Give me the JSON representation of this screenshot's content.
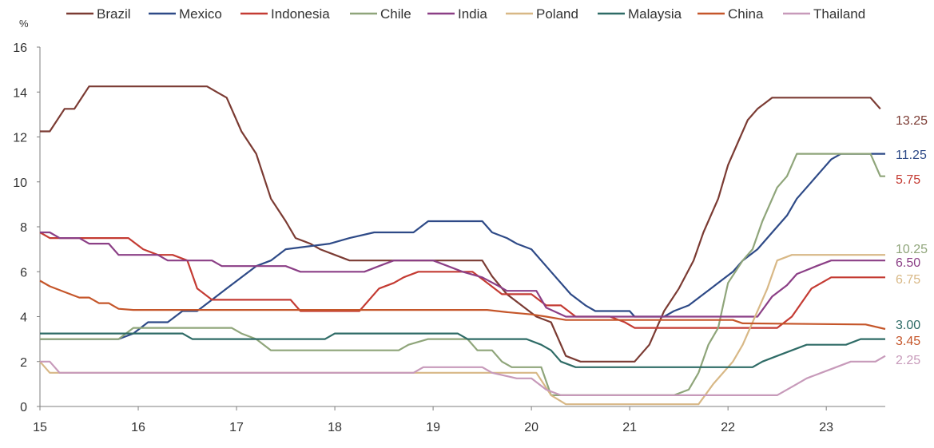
{
  "chart_data": {
    "type": "line",
    "ylabel": "%",
    "ylim": [
      0,
      16
    ],
    "xlim": [
      15,
      23.6
    ],
    "x_ticks": [
      "15",
      "16",
      "17",
      "18",
      "19",
      "20",
      "21",
      "22",
      "23"
    ],
    "y_ticks": [
      "0",
      "2",
      "4",
      "6",
      "8",
      "10",
      "12",
      "14",
      "16"
    ],
    "grid": false,
    "legend_position": "top",
    "series": [
      {
        "name": "Brazil",
        "color": "#7b3b33",
        "end_label": "13.25",
        "points": [
          [
            15.0,
            12.25
          ],
          [
            15.1,
            12.25
          ],
          [
            15.25,
            13.25
          ],
          [
            15.35,
            13.25
          ],
          [
            15.5,
            14.25
          ],
          [
            16.7,
            14.25
          ],
          [
            16.8,
            14.0
          ],
          [
            16.9,
            13.75
          ],
          [
            17.05,
            12.25
          ],
          [
            17.2,
            11.25
          ],
          [
            17.35,
            9.25
          ],
          [
            17.5,
            8.25
          ],
          [
            17.6,
            7.5
          ],
          [
            17.75,
            7.25
          ],
          [
            17.85,
            7.0
          ],
          [
            18.0,
            6.75
          ],
          [
            18.15,
            6.5
          ],
          [
            19.5,
            6.5
          ],
          [
            19.6,
            5.8
          ],
          [
            19.75,
            5.0
          ],
          [
            19.9,
            4.5
          ],
          [
            20.05,
            4.0
          ],
          [
            20.2,
            3.75
          ],
          [
            20.35,
            2.25
          ],
          [
            20.5,
            2.0
          ],
          [
            21.05,
            2.0
          ],
          [
            21.2,
            2.75
          ],
          [
            21.35,
            4.25
          ],
          [
            21.5,
            5.25
          ],
          [
            21.65,
            6.5
          ],
          [
            21.75,
            7.75
          ],
          [
            21.9,
            9.25
          ],
          [
            22.0,
            10.75
          ],
          [
            22.1,
            11.75
          ],
          [
            22.2,
            12.75
          ],
          [
            22.3,
            13.25
          ],
          [
            22.45,
            13.75
          ],
          [
            23.45,
            13.75
          ],
          [
            23.55,
            13.25
          ]
        ]
      },
      {
        "name": "Mexico",
        "color": "#2e4a87",
        "end_label": "11.25",
        "points": [
          [
            15.0,
            3.0
          ],
          [
            15.8,
            3.0
          ],
          [
            15.95,
            3.25
          ],
          [
            16.1,
            3.75
          ],
          [
            16.3,
            3.75
          ],
          [
            16.45,
            4.25
          ],
          [
            16.6,
            4.25
          ],
          [
            16.75,
            4.75
          ],
          [
            16.9,
            5.25
          ],
          [
            17.05,
            5.75
          ],
          [
            17.2,
            6.25
          ],
          [
            17.35,
            6.5
          ],
          [
            17.5,
            7.0
          ],
          [
            17.95,
            7.25
          ],
          [
            18.15,
            7.5
          ],
          [
            18.4,
            7.75
          ],
          [
            18.8,
            7.75
          ],
          [
            18.95,
            8.25
          ],
          [
            19.5,
            8.25
          ],
          [
            19.6,
            7.75
          ],
          [
            19.75,
            7.5
          ],
          [
            19.85,
            7.25
          ],
          [
            20.0,
            7.0
          ],
          [
            20.2,
            6.0
          ],
          [
            20.4,
            5.0
          ],
          [
            20.55,
            4.5
          ],
          [
            20.65,
            4.25
          ],
          [
            21.0,
            4.25
          ],
          [
            21.05,
            4.0
          ],
          [
            21.35,
            4.0
          ],
          [
            21.45,
            4.25
          ],
          [
            21.6,
            4.5
          ],
          [
            21.75,
            5.0
          ],
          [
            21.9,
            5.5
          ],
          [
            22.05,
            6.0
          ],
          [
            22.15,
            6.5
          ],
          [
            22.3,
            7.0
          ],
          [
            22.45,
            7.75
          ],
          [
            22.6,
            8.5
          ],
          [
            22.7,
            9.25
          ],
          [
            22.85,
            10.0
          ],
          [
            22.95,
            10.5
          ],
          [
            23.05,
            11.0
          ],
          [
            23.15,
            11.25
          ],
          [
            23.6,
            11.25
          ]
        ]
      },
      {
        "name": "Indonesia",
        "color": "#c43b33",
        "end_label": "5.75",
        "points": [
          [
            15.0,
            7.75
          ],
          [
            15.1,
            7.5
          ],
          [
            15.9,
            7.5
          ],
          [
            16.05,
            7.0
          ],
          [
            16.2,
            6.75
          ],
          [
            16.35,
            6.75
          ],
          [
            16.5,
            6.5
          ],
          [
            16.6,
            5.25
          ],
          [
            16.75,
            4.75
          ],
          [
            17.55,
            4.75
          ],
          [
            17.65,
            4.25
          ],
          [
            18.25,
            4.25
          ],
          [
            18.45,
            5.25
          ],
          [
            18.6,
            5.5
          ],
          [
            18.7,
            5.75
          ],
          [
            18.85,
            6.0
          ],
          [
            19.4,
            6.0
          ],
          [
            19.55,
            5.5
          ],
          [
            19.7,
            5.0
          ],
          [
            20.0,
            5.0
          ],
          [
            20.15,
            4.5
          ],
          [
            20.3,
            4.5
          ],
          [
            20.45,
            4.0
          ],
          [
            20.8,
            4.0
          ],
          [
            20.95,
            3.75
          ],
          [
            21.05,
            3.5
          ],
          [
            22.5,
            3.5
          ],
          [
            22.65,
            4.0
          ],
          [
            22.85,
            5.25
          ],
          [
            22.95,
            5.5
          ],
          [
            23.05,
            5.75
          ],
          [
            23.6,
            5.75
          ]
        ]
      },
      {
        "name": "Chile",
        "color": "#8fa57a",
        "end_label": "10.25",
        "points": [
          [
            15.0,
            3.0
          ],
          [
            15.8,
            3.0
          ],
          [
            15.95,
            3.5
          ],
          [
            16.95,
            3.5
          ],
          [
            17.05,
            3.25
          ],
          [
            17.2,
            3.0
          ],
          [
            17.35,
            2.5
          ],
          [
            18.65,
            2.5
          ],
          [
            18.75,
            2.75
          ],
          [
            18.95,
            3.0
          ],
          [
            19.35,
            3.0
          ],
          [
            19.45,
            2.5
          ],
          [
            19.6,
            2.5
          ],
          [
            19.7,
            2.0
          ],
          [
            19.8,
            1.75
          ],
          [
            20.1,
            1.75
          ],
          [
            20.2,
            0.5
          ],
          [
            21.45,
            0.5
          ],
          [
            21.6,
            0.75
          ],
          [
            21.7,
            1.5
          ],
          [
            21.8,
            2.75
          ],
          [
            21.9,
            3.5
          ],
          [
            21.95,
            4.5
          ],
          [
            22.0,
            5.5
          ],
          [
            22.15,
            6.5
          ],
          [
            22.25,
            7.0
          ],
          [
            22.35,
            8.25
          ],
          [
            22.5,
            9.75
          ],
          [
            22.6,
            10.25
          ],
          [
            22.7,
            11.25
          ],
          [
            23.45,
            11.25
          ],
          [
            23.55,
            10.25
          ],
          [
            23.6,
            10.25
          ]
        ]
      },
      {
        "name": "India",
        "color": "#8b3f86",
        "end_label": "6.50",
        "points": [
          [
            15.0,
            7.75
          ],
          [
            15.1,
            7.75
          ],
          [
            15.2,
            7.5
          ],
          [
            15.4,
            7.5
          ],
          [
            15.5,
            7.25
          ],
          [
            15.7,
            7.25
          ],
          [
            15.8,
            6.75
          ],
          [
            16.2,
            6.75
          ],
          [
            16.3,
            6.5
          ],
          [
            16.75,
            6.5
          ],
          [
            16.85,
            6.25
          ],
          [
            17.5,
            6.25
          ],
          [
            17.65,
            6.0
          ],
          [
            18.3,
            6.0
          ],
          [
            18.45,
            6.25
          ],
          [
            18.6,
            6.5
          ],
          [
            19.0,
            6.5
          ],
          [
            19.15,
            6.25
          ],
          [
            19.3,
            6.0
          ],
          [
            19.5,
            5.75
          ],
          [
            19.65,
            5.4
          ],
          [
            19.75,
            5.15
          ],
          [
            20.05,
            5.15
          ],
          [
            20.15,
            4.4
          ],
          [
            20.35,
            4.0
          ],
          [
            22.3,
            4.0
          ],
          [
            22.45,
            4.9
          ],
          [
            22.6,
            5.4
          ],
          [
            22.7,
            5.9
          ],
          [
            22.9,
            6.25
          ],
          [
            23.05,
            6.5
          ],
          [
            23.6,
            6.5
          ]
        ]
      },
      {
        "name": "Poland",
        "color": "#d8b886",
        "end_label": "6.75",
        "points": [
          [
            15.0,
            2.0
          ],
          [
            15.1,
            1.5
          ],
          [
            20.05,
            1.5
          ],
          [
            20.2,
            0.5
          ],
          [
            20.35,
            0.1
          ],
          [
            21.7,
            0.1
          ],
          [
            21.85,
            1.0
          ],
          [
            22.05,
            2.0
          ],
          [
            22.15,
            2.75
          ],
          [
            22.3,
            4.25
          ],
          [
            22.4,
            5.25
          ],
          [
            22.5,
            6.5
          ],
          [
            22.65,
            6.75
          ],
          [
            23.6,
            6.75
          ]
        ]
      },
      {
        "name": "Malaysia",
        "color": "#2e6b66",
        "end_label": "3.00",
        "points": [
          [
            15.0,
            3.25
          ],
          [
            16.45,
            3.25
          ],
          [
            16.55,
            3.0
          ],
          [
            17.9,
            3.0
          ],
          [
            18.0,
            3.25
          ],
          [
            19.25,
            3.25
          ],
          [
            19.35,
            3.0
          ],
          [
            19.95,
            3.0
          ],
          [
            20.1,
            2.75
          ],
          [
            20.2,
            2.5
          ],
          [
            20.3,
            2.0
          ],
          [
            20.45,
            1.75
          ],
          [
            22.25,
            1.75
          ],
          [
            22.35,
            2.0
          ],
          [
            22.5,
            2.25
          ],
          [
            22.65,
            2.5
          ],
          [
            22.8,
            2.75
          ],
          [
            23.2,
            2.75
          ],
          [
            23.35,
            3.0
          ],
          [
            23.6,
            3.0
          ]
        ]
      },
      {
        "name": "China",
        "color": "#c5562a",
        "end_label": "3.45",
        "points": [
          [
            15.0,
            5.6
          ],
          [
            15.1,
            5.35
          ],
          [
            15.25,
            5.1
          ],
          [
            15.4,
            4.85
          ],
          [
            15.5,
            4.85
          ],
          [
            15.6,
            4.6
          ],
          [
            15.7,
            4.6
          ],
          [
            15.8,
            4.35
          ],
          [
            15.95,
            4.3
          ],
          [
            19.55,
            4.3
          ],
          [
            19.75,
            4.2
          ],
          [
            20.0,
            4.1
          ],
          [
            20.15,
            4.0
          ],
          [
            20.35,
            3.85
          ],
          [
            22.05,
            3.85
          ],
          [
            22.15,
            3.7
          ],
          [
            23.4,
            3.65
          ],
          [
            23.6,
            3.45
          ]
        ]
      },
      {
        "name": "Thailand",
        "color": "#c79aba",
        "end_label": "2.25",
        "points": [
          [
            15.0,
            2.0
          ],
          [
            15.1,
            2.0
          ],
          [
            15.2,
            1.5
          ],
          [
            18.8,
            1.5
          ],
          [
            18.9,
            1.75
          ],
          [
            19.5,
            1.75
          ],
          [
            19.6,
            1.5
          ],
          [
            19.85,
            1.25
          ],
          [
            20.0,
            1.25
          ],
          [
            20.15,
            0.75
          ],
          [
            20.3,
            0.5
          ],
          [
            22.5,
            0.5
          ],
          [
            22.6,
            0.75
          ],
          [
            22.7,
            1.0
          ],
          [
            22.8,
            1.25
          ],
          [
            22.95,
            1.5
          ],
          [
            23.1,
            1.75
          ],
          [
            23.25,
            2.0
          ],
          [
            23.5,
            2.0
          ],
          [
            23.6,
            2.25
          ]
        ]
      }
    ]
  }
}
